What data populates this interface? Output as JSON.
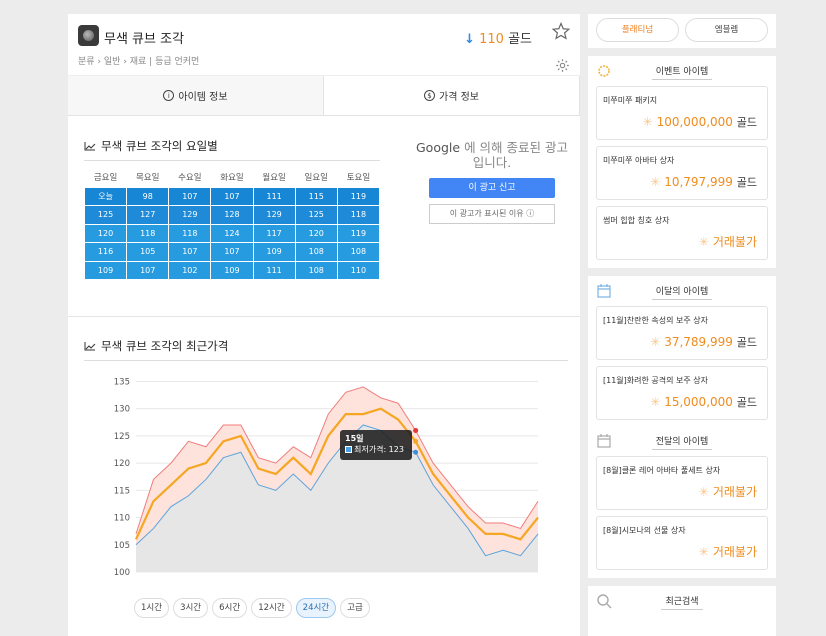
{
  "header": {
    "item_name": "무색 큐브 조각",
    "breadcrumb": "분류 › 일반 › 재료 | 등급 언커먼",
    "price_arrow": "↓",
    "price_value": "110",
    "price_unit": "골드"
  },
  "tabs": [
    {
      "label": "아이템 정보",
      "icon": "i"
    },
    {
      "label": "가격 정보",
      "icon": "$"
    }
  ],
  "weekly": {
    "title": "무색 큐브 조각의 요일별",
    "days": [
      "금요일",
      "목요일",
      "수요일",
      "화요일",
      "월요일",
      "일요일",
      "토요일"
    ],
    "rows": [
      [
        "오늘",
        "98",
        "107",
        "107",
        "111",
        "115",
        "119"
      ],
      [
        "125",
        "127",
        "129",
        "128",
        "129",
        "125",
        "118"
      ],
      [
        "120",
        "118",
        "118",
        "124",
        "117",
        "120",
        "119"
      ],
      [
        "116",
        "105",
        "107",
        "107",
        "109",
        "108",
        "108"
      ],
      [
        "109",
        "107",
        "102",
        "109",
        "111",
        "108",
        "110"
      ]
    ]
  },
  "ad": {
    "brand": "Google",
    "text": "에 의해 종료된 광고입니다.",
    "report": "이 광고 신고",
    "why": "이 광고가 표시된 이유 ⓘ"
  },
  "recent": {
    "title": "무색 큐브 조각의 최근가격",
    "tooltip_title": "15일",
    "tooltip_label": "최저가격: 123",
    "ranges": [
      "1시간",
      "3시간",
      "6시간",
      "12시간",
      "24시간",
      "고급"
    ],
    "active_range": "24시간"
  },
  "chart_data": {
    "type": "line",
    "yticks": [
      100,
      105,
      110,
      115,
      120,
      125,
      130,
      135
    ],
    "ylim": [
      100,
      136
    ],
    "grid": true,
    "series": [
      {
        "role": "max",
        "color": "#f07d7d",
        "values": [
          107,
          117,
          120,
          124,
          123,
          127,
          127,
          121,
          120,
          123,
          121,
          129,
          133,
          134,
          132,
          131,
          126,
          120,
          116,
          112,
          109,
          109,
          108,
          113
        ]
      },
      {
        "role": "average",
        "color": "#f5a623",
        "values": [
          106,
          113,
          116,
          119,
          120,
          124,
          125,
          119,
          118,
          121,
          118,
          125,
          129,
          129,
          130,
          128,
          124,
          118,
          114,
          110,
          107,
          107,
          106,
          110
        ]
      },
      {
        "role": "min",
        "color": "#5ba3dc",
        "values": [
          105,
          108,
          112,
          114,
          117,
          121,
          122,
          116,
          115,
          118,
          115,
          120,
          124,
          127,
          126,
          123,
          122,
          116,
          112,
          108,
          103,
          104,
          103,
          107
        ]
      }
    ]
  },
  "sidebar": {
    "pills": [
      "플래티넘",
      "엠블렘"
    ],
    "event": {
      "title": "이벤트 아이템",
      "items": [
        {
          "name": "미쭈미쭈 패키지",
          "value": "100,000,000",
          "unit": "골드"
        },
        {
          "name": "미쭈미쭈 아바타 상자",
          "value": "10,797,999",
          "unit": "골드"
        },
        {
          "name": "썸머 힙합 칭호 상자",
          "value": "거래불가",
          "unit": ""
        }
      ]
    },
    "month": {
      "title": "이달의 아이템",
      "items": [
        {
          "name": "[11월]찬란한 속성의 보주 상자",
          "value": "37,789,999",
          "unit": "골드"
        },
        {
          "name": "[11월]화려한 공격의 보주 상자",
          "value": "15,000,000",
          "unit": "골드"
        }
      ]
    },
    "lastmonth": {
      "title": "전달의 아이템",
      "items": [
        {
          "name": "[8월]클론 레어 아바타 풀세트 상자",
          "value": "거래불가",
          "unit": ""
        },
        {
          "name": "[8월]시모나의 선물 상자",
          "value": "거래불가",
          "unit": ""
        }
      ]
    },
    "search": {
      "title": "최근검색"
    }
  }
}
